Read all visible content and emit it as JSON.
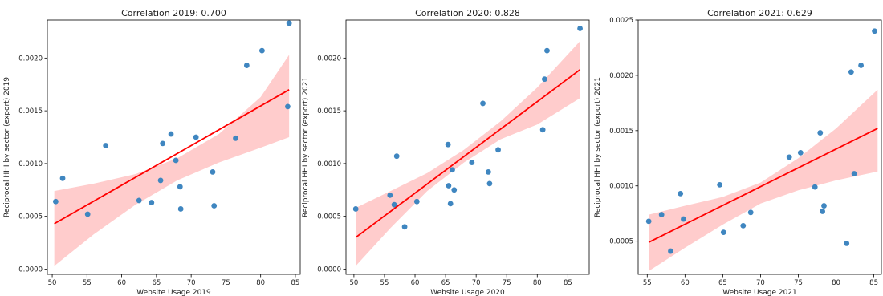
{
  "chart_data": [
    {
      "type": "scatter",
      "title": "Correlation 2019: 0.700",
      "xlabel": "Website Usage 2019",
      "ylabel": "Reciprocal HHI by sector (export) 2019",
      "xlim": [
        49.3,
        85.7
      ],
      "ylim": [
        -5e-05,
        0.00236
      ],
      "xticks": [
        50,
        55,
        60,
        65,
        70,
        75,
        80,
        85
      ],
      "yticks": [
        0.0,
        0.0005,
        0.001,
        0.0015,
        0.002
      ],
      "ytick_labels": [
        "0.0000",
        "0.0005",
        "0.0010",
        "0.0015",
        "0.0020"
      ],
      "points": [
        [
          50.5,
          0.00064
        ],
        [
          51.5,
          0.00086
        ],
        [
          55.1,
          0.00052
        ],
        [
          57.7,
          0.00117
        ],
        [
          62.5,
          0.00065
        ],
        [
          64.3,
          0.00063
        ],
        [
          65.6,
          0.00084
        ],
        [
          65.9,
          0.00119
        ],
        [
          67.1,
          0.00128
        ],
        [
          67.8,
          0.00103
        ],
        [
          68.4,
          0.00078
        ],
        [
          68.5,
          0.00057
        ],
        [
          70.7,
          0.00125
        ],
        [
          73.1,
          0.00092
        ],
        [
          73.3,
          0.0006
        ],
        [
          76.4,
          0.00124
        ],
        [
          78.0,
          0.00193
        ],
        [
          80.2,
          0.00207
        ],
        [
          83.9,
          0.00154
        ],
        [
          84.1,
          0.00233
        ]
      ],
      "fit_line": {
        "x": [
          50.3,
          84.1
        ],
        "y": [
          0.00043,
          0.0017
        ]
      },
      "ci_band": {
        "x": [
          50.3,
          56,
          62,
          68,
          74,
          80,
          84.1
        ],
        "lower": [
          3e-05,
          0.00033,
          0.00061,
          0.00084,
          0.00101,
          0.00115,
          0.00125
        ],
        "upper": [
          0.00074,
          0.00081,
          0.0009,
          0.00105,
          0.00128,
          0.00163,
          0.00203
        ]
      },
      "scatter_color": "#3f86c0",
      "line_color": "#ff0000",
      "band_color": "#ffcccc",
      "grid": false
    },
    {
      "type": "scatter",
      "title": "Correlation 2020: 0.828",
      "xlabel": "Website Usage 2020",
      "ylabel": "Reciprocal HHI by sector (export) 2021",
      "xlim": [
        48.7,
        88.5
      ],
      "ylim": [
        -5e-05,
        0.00236
      ],
      "xticks": [
        50,
        55,
        60,
        65,
        70,
        75,
        80,
        85
      ],
      "yticks": [
        0.0,
        0.0005,
        0.001,
        0.0015,
        0.002
      ],
      "ytick_labels": [
        "0.0000",
        "0.0005",
        "0.0010",
        "0.0015",
        "0.0020"
      ],
      "points": [
        [
          50.3,
          0.00057
        ],
        [
          55.9,
          0.0007
        ],
        [
          56.6,
          0.00061
        ],
        [
          57.0,
          0.00107
        ],
        [
          58.3,
          0.0004
        ],
        [
          60.3,
          0.00064
        ],
        [
          65.4,
          0.00118
        ],
        [
          65.5,
          0.00079
        ],
        [
          65.8,
          0.00062
        ],
        [
          66.1,
          0.00094
        ],
        [
          66.4,
          0.00075
        ],
        [
          69.3,
          0.00101
        ],
        [
          71.1,
          0.00157
        ],
        [
          72.0,
          0.00092
        ],
        [
          72.2,
          0.00081
        ],
        [
          73.6,
          0.00113
        ],
        [
          80.9,
          0.00132
        ],
        [
          81.2,
          0.0018
        ],
        [
          81.6,
          0.00207
        ],
        [
          87.0,
          0.00228
        ]
      ],
      "fit_line": {
        "x": [
          50.3,
          87.0
        ],
        "y": [
          0.0003,
          0.00189
        ]
      },
      "ci_band": {
        "x": [
          50.3,
          56,
          62,
          68,
          74,
          80,
          87.0
        ],
        "lower": [
          3e-05,
          0.00039,
          0.00074,
          0.00101,
          0.00123,
          0.00137,
          0.00162
        ],
        "upper": [
          0.00058,
          0.00074,
          0.00091,
          0.00113,
          0.0014,
          0.00172,
          0.00216
        ]
      },
      "scatter_color": "#3f86c0",
      "line_color": "#ff0000",
      "band_color": "#ffcccc",
      "grid": false
    },
    {
      "type": "scatter",
      "title": "Correlation 2021: 0.629",
      "xlabel": "Website Usage 2021",
      "ylabel": "Reciprocal HHI by sector (export) 2021",
      "xlim": [
        53.8,
        86.0
      ],
      "ylim": [
        0.0002,
        0.0025
      ],
      "xticks": [
        55,
        60,
        65,
        70,
        75,
        80,
        85
      ],
      "yticks": [
        0.0005,
        0.001,
        0.0015,
        0.002,
        0.0025
      ],
      "ytick_labels": [
        "0.0005",
        "0.0010",
        "0.0015",
        "0.0020",
        "0.0025"
      ],
      "points": [
        [
          55.2,
          0.00068
        ],
        [
          56.9,
          0.00074
        ],
        [
          58.1,
          0.00041
        ],
        [
          59.4,
          0.00093
        ],
        [
          59.8,
          0.0007
        ],
        [
          64.6,
          0.00101
        ],
        [
          65.1,
          0.00058
        ],
        [
          67.7,
          0.00064
        ],
        [
          68.7,
          0.00076
        ],
        [
          73.8,
          0.00126
        ],
        [
          75.3,
          0.0013
        ],
        [
          77.2,
          0.00099
        ],
        [
          77.9,
          0.00148
        ],
        [
          78.2,
          0.00077
        ],
        [
          78.4,
          0.00082
        ],
        [
          81.4,
          0.00048
        ],
        [
          82.0,
          0.00203
        ],
        [
          82.4,
          0.00111
        ],
        [
          83.3,
          0.00209
        ],
        [
          85.1,
          0.0024
        ]
      ],
      "fit_line": {
        "x": [
          55.2,
          85.5
        ],
        "y": [
          0.00049,
          0.00152
        ]
      },
      "ci_band": {
        "x": [
          55.2,
          60,
          65,
          70,
          75,
          80,
          85.5
        ],
        "lower": [
          0.00023,
          0.00044,
          0.00065,
          0.00084,
          0.00096,
          0.00105,
          0.00113
        ],
        "upper": [
          0.00074,
          0.00082,
          0.0009,
          0.00103,
          0.00125,
          0.00152,
          0.00187
        ]
      },
      "scatter_color": "#3f86c0",
      "line_color": "#ff0000",
      "band_color": "#ffcccc",
      "grid": false
    }
  ]
}
